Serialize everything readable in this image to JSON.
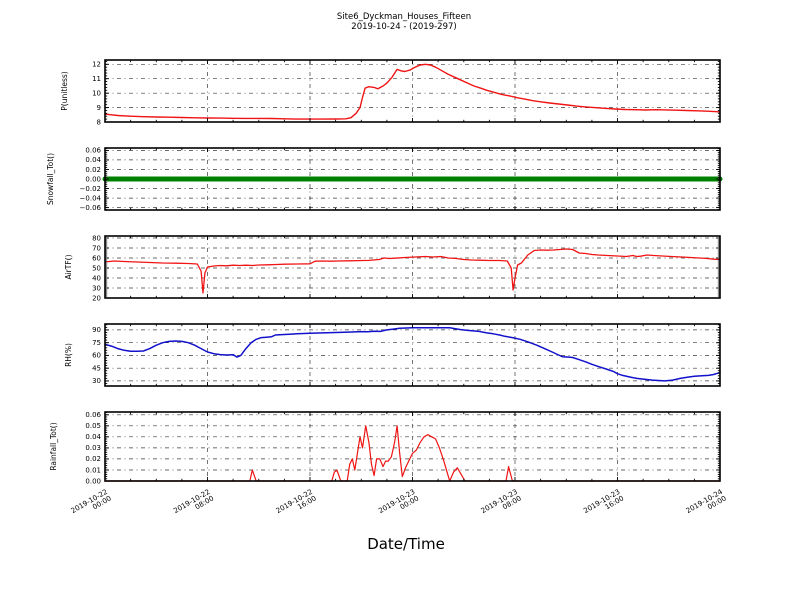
{
  "header": {
    "title_line1": "Site6_Dyckman_Houses_Fifteen",
    "title_line2": "2019-10-24 - (2019-297)"
  },
  "xlabel": "Date/Time",
  "colors": {
    "red": "#f01414",
    "green": "#008000",
    "blue": "#1111cc",
    "grid": "#3a3a3a",
    "frame": "#000000",
    "plot_bg": "#ffffff"
  },
  "x_axis": {
    "range_hours": [
      0,
      48
    ],
    "tick_hours": [
      0,
      8,
      16,
      24,
      32,
      40,
      48
    ],
    "tick_labels": [
      [
        "2019-10-22",
        "00:00"
      ],
      [
        "2019-10-22",
        "08:00"
      ],
      [
        "2019-10-22",
        "16:00"
      ],
      [
        "2019-10-23",
        "00:00"
      ],
      [
        "2019-10-23",
        "08:00"
      ],
      [
        "2019-10-23",
        "16:00"
      ],
      [
        "2019-10-24",
        "00:00"
      ]
    ],
    "minor_step_hours": 2,
    "grid": "dash-dot"
  },
  "chart_data": [
    {
      "type": "line",
      "id": "p-unitless",
      "ylabel": "P(unitless)",
      "ylim": [
        8,
        12.3
      ],
      "yticks": [
        8,
        9,
        10,
        11,
        12
      ],
      "ytick_labels": [
        "8",
        "9",
        "10",
        "11",
        "12"
      ],
      "color_key": "red",
      "line_width": 1.4,
      "points": [
        [
          0,
          8.55
        ],
        [
          0.5,
          8.5
        ],
        [
          1,
          8.45
        ],
        [
          2,
          8.4
        ],
        [
          3,
          8.37
        ],
        [
          4,
          8.35
        ],
        [
          5,
          8.33
        ],
        [
          6,
          8.31
        ],
        [
          7,
          8.29
        ],
        [
          8,
          8.28
        ],
        [
          9,
          8.27
        ],
        [
          10,
          8.26
        ],
        [
          11,
          8.25
        ],
        [
          12,
          8.25
        ],
        [
          13,
          8.24
        ],
        [
          14,
          8.22
        ],
        [
          15,
          8.2
        ],
        [
          16,
          8.2
        ],
        [
          17,
          8.2
        ],
        [
          18,
          8.21
        ],
        [
          18.8,
          8.22
        ],
        [
          19.2,
          8.3
        ],
        [
          19.6,
          8.6
        ],
        [
          19.9,
          9
        ],
        [
          20.1,
          9.7
        ],
        [
          20.3,
          10.35
        ],
        [
          20.6,
          10.45
        ],
        [
          21,
          10.4
        ],
        [
          21.3,
          10.3
        ],
        [
          21.7,
          10.5
        ],
        [
          22,
          10.7
        ],
        [
          22.4,
          11.1
        ],
        [
          22.8,
          11.65
        ],
        [
          23.1,
          11.55
        ],
        [
          23.4,
          11.5
        ],
        [
          23.8,
          11.6
        ],
        [
          24.2,
          11.8
        ],
        [
          24.6,
          11.95
        ],
        [
          25,
          12
        ],
        [
          25.4,
          11.95
        ],
        [
          25.8,
          11.8
        ],
        [
          26.3,
          11.55
        ],
        [
          26.8,
          11.3
        ],
        [
          27.3,
          11.1
        ],
        [
          27.8,
          10.9
        ],
        [
          28.3,
          10.7
        ],
        [
          28.8,
          10.5
        ],
        [
          29.3,
          10.35
        ],
        [
          29.8,
          10.2
        ],
        [
          30.4,
          10.05
        ],
        [
          31,
          9.9
        ],
        [
          31.6,
          9.8
        ],
        [
          32.2,
          9.68
        ],
        [
          32.8,
          9.58
        ],
        [
          33.4,
          9.48
        ],
        [
          34,
          9.4
        ],
        [
          34.7,
          9.32
        ],
        [
          35.4,
          9.25
        ],
        [
          36.1,
          9.18
        ],
        [
          36.8,
          9.1
        ],
        [
          37.5,
          9.05
        ],
        [
          38.2,
          9
        ],
        [
          39,
          8.95
        ],
        [
          39.8,
          8.9
        ],
        [
          40.6,
          8.87
        ],
        [
          41.4,
          8.85
        ],
        [
          42.2,
          8.83
        ],
        [
          43,
          8.85
        ],
        [
          43.8,
          8.84
        ],
        [
          44.6,
          8.82
        ],
        [
          45.4,
          8.8
        ],
        [
          46.2,
          8.78
        ],
        [
          47,
          8.75
        ],
        [
          47.6,
          8.72
        ],
        [
          48,
          8.7
        ]
      ]
    },
    {
      "type": "line",
      "id": "snowfall-tot",
      "ylabel": "Snowfall_Tot()",
      "ylim": [
        -0.065,
        0.065
      ],
      "yticks": [
        -0.06,
        -0.04,
        -0.02,
        0,
        0.02,
        0.04,
        0.06
      ],
      "ytick_labels": [
        "−0.06",
        "−0.04",
        "−0.02",
        "0.00",
        "0.02",
        "0.04",
        "0.06"
      ],
      "color_key": "green",
      "line_width": 5,
      "points": [
        [
          0,
          0
        ],
        [
          48,
          0
        ]
      ]
    },
    {
      "type": "line",
      "id": "airtf",
      "ylabel": "AirTF()",
      "ylim": [
        20,
        82
      ],
      "yticks": [
        20,
        30,
        40,
        50,
        60,
        70,
        80
      ],
      "ytick_labels": [
        "20",
        "30",
        "40",
        "50",
        "60",
        "70",
        "80"
      ],
      "color_key": "red",
      "line_width": 1.3,
      "points": [
        [
          0,
          56
        ],
        [
          0.7,
          57
        ],
        [
          1.5,
          56.5
        ],
        [
          2.5,
          56
        ],
        [
          3.5,
          55.5
        ],
        [
          4.5,
          55
        ],
        [
          5.5,
          54.8
        ],
        [
          6.5,
          54.5
        ],
        [
          7.2,
          54
        ],
        [
          7.5,
          47
        ],
        [
          7.65,
          25
        ],
        [
          7.8,
          45
        ],
        [
          8,
          51
        ],
        [
          8.5,
          52
        ],
        [
          9,
          52.5
        ],
        [
          9.5,
          52.2
        ],
        [
          10,
          52.8
        ],
        [
          10.5,
          52.5
        ],
        [
          11,
          52.8
        ],
        [
          11.5,
          52.5
        ],
        [
          12,
          53
        ],
        [
          12.7,
          53.2
        ],
        [
          13.4,
          53.5
        ],
        [
          14,
          53.8
        ],
        [
          15,
          54
        ],
        [
          16,
          54.2
        ],
        [
          16.4,
          56.8
        ],
        [
          17,
          57
        ],
        [
          17.6,
          56.8
        ],
        [
          18.2,
          57
        ],
        [
          19,
          57.2
        ],
        [
          19.8,
          57.4
        ],
        [
          20.6,
          57.6
        ],
        [
          21.4,
          58.5
        ],
        [
          21.8,
          60
        ],
        [
          22.2,
          59.5
        ],
        [
          22.6,
          59.8
        ],
        [
          23.4,
          60.5
        ],
        [
          24.2,
          61
        ],
        [
          25,
          61.5
        ],
        [
          25.6,
          61
        ],
        [
          26.2,
          61.5
        ],
        [
          26.8,
          60
        ],
        [
          27.4,
          59.5
        ],
        [
          28,
          58.5
        ],
        [
          28.6,
          58
        ],
        [
          29.2,
          57.8
        ],
        [
          30,
          57.5
        ],
        [
          30.8,
          57.5
        ],
        [
          31.4,
          57
        ],
        [
          31.7,
          50
        ],
        [
          31.85,
          28
        ],
        [
          32,
          40
        ],
        [
          32.2,
          53
        ],
        [
          32.5,
          55
        ],
        [
          33,
          63
        ],
        [
          33.5,
          67.5
        ],
        [
          34,
          68
        ],
        [
          34.5,
          67.8
        ],
        [
          35,
          68
        ],
        [
          35.5,
          68.5
        ],
        [
          36,
          69
        ],
        [
          36.5,
          68.5
        ],
        [
          37,
          65
        ],
        [
          37.5,
          64.5
        ],
        [
          38,
          63.5
        ],
        [
          38.5,
          63
        ],
        [
          39.2,
          62.5
        ],
        [
          40,
          62
        ],
        [
          40.7,
          61.5
        ],
        [
          41.2,
          62.5
        ],
        [
          41.5,
          61.5
        ],
        [
          41.8,
          61.8
        ],
        [
          42.3,
          63
        ],
        [
          42.8,
          62.5
        ],
        [
          43.5,
          62
        ],
        [
          44.2,
          61.5
        ],
        [
          45,
          61
        ],
        [
          45.7,
          60.5
        ],
        [
          46.4,
          60
        ],
        [
          47,
          59.5
        ],
        [
          47.5,
          58.8
        ],
        [
          48,
          58.5
        ]
      ]
    },
    {
      "type": "line",
      "id": "rh",
      "ylabel": "RH(%)",
      "ylim": [
        24,
        97
      ],
      "yticks": [
        30,
        45,
        60,
        75,
        90
      ],
      "ytick_labels": [
        "30",
        "45",
        "60",
        "75",
        "90"
      ],
      "color_key": "blue",
      "line_width": 1.5,
      "points": [
        [
          0,
          73
        ],
        [
          0.5,
          71
        ],
        [
          1,
          68
        ],
        [
          1.5,
          66
        ],
        [
          2,
          65
        ],
        [
          2.5,
          64.8
        ],
        [
          3,
          65.2
        ],
        [
          3.5,
          68
        ],
        [
          4,
          72
        ],
        [
          4.5,
          75
        ],
        [
          5,
          76.5
        ],
        [
          5.5,
          77
        ],
        [
          6,
          76.5
        ],
        [
          6.5,
          75
        ],
        [
          7,
          72
        ],
        [
          7.5,
          68
        ],
        [
          8,
          64
        ],
        [
          8.5,
          62
        ],
        [
          9,
          61
        ],
        [
          9.5,
          60.5
        ],
        [
          10,
          60.8
        ],
        [
          10.3,
          58
        ],
        [
          10.6,
          60
        ],
        [
          11,
          68
        ],
        [
          11.4,
          75
        ],
        [
          11.8,
          79
        ],
        [
          12.2,
          81
        ],
        [
          12.6,
          81.5
        ],
        [
          13,
          82
        ],
        [
          13.3,
          84
        ],
        [
          13.8,
          84.5
        ],
        [
          14.4,
          85
        ],
        [
          15,
          85.5
        ],
        [
          16,
          86
        ],
        [
          17,
          86.5
        ],
        [
          18,
          87
        ],
        [
          19,
          87.5
        ],
        [
          20,
          88
        ],
        [
          20.5,
          87.8
        ],
        [
          21,
          88.5
        ],
        [
          21.5,
          88.3
        ],
        [
          22,
          90
        ],
        [
          22.5,
          91
        ],
        [
          23,
          92
        ],
        [
          24,
          92.5
        ],
        [
          25,
          92.5
        ],
        [
          26,
          92.7
        ],
        [
          26.9,
          92.5
        ],
        [
          27.7,
          90.5
        ],
        [
          28.3,
          89.5
        ],
        [
          29.1,
          88.5
        ],
        [
          29.8,
          86.5
        ],
        [
          30.3,
          85.5
        ],
        [
          30.8,
          84
        ],
        [
          31.2,
          82.5
        ],
        [
          31.8,
          81
        ],
        [
          32.4,
          79
        ],
        [
          33,
          76
        ],
        [
          33.7,
          72
        ],
        [
          34.3,
          68
        ],
        [
          34.9,
          64
        ],
        [
          35.4,
          60.5
        ],
        [
          35.7,
          58.5
        ],
        [
          36.2,
          58
        ],
        [
          36.5,
          57.5
        ],
        [
          36.9,
          55.5
        ],
        [
          37.5,
          52.5
        ],
        [
          38,
          49.5
        ],
        [
          38.6,
          46.5
        ],
        [
          39.2,
          43.5
        ],
        [
          39.7,
          41
        ],
        [
          40,
          38.5
        ],
        [
          40.4,
          36.5
        ],
        [
          41,
          34.5
        ],
        [
          41.5,
          33
        ],
        [
          42.1,
          32
        ],
        [
          42.7,
          31
        ],
        [
          43.2,
          30.5
        ],
        [
          43.7,
          30
        ],
        [
          44.3,
          31
        ],
        [
          44.9,
          33
        ],
        [
          45.5,
          34.5
        ],
        [
          46,
          35.5
        ],
        [
          46.6,
          36
        ],
        [
          47.1,
          36.5
        ],
        [
          47.5,
          37.5
        ],
        [
          47.8,
          39
        ],
        [
          48,
          40
        ]
      ]
    },
    {
      "type": "line",
      "id": "rainfall-tot",
      "ylabel": "Rainfall_Tot()",
      "ylim": [
        0,
        0.0625
      ],
      "yticks": [
        0,
        0.01,
        0.02,
        0.03,
        0.04,
        0.05,
        0.06
      ],
      "ytick_labels": [
        "0.00",
        "0.01",
        "0.02",
        "0.03",
        "0.04",
        "0.05",
        "0.06"
      ],
      "color_key": "red",
      "line_width": 1.2,
      "points": [
        [
          0,
          0
        ],
        [
          11.3,
          0
        ],
        [
          11.5,
          0.01
        ],
        [
          11.8,
          0
        ],
        [
          17.7,
          0
        ],
        [
          17.9,
          0.008
        ],
        [
          18.1,
          0.01
        ],
        [
          18.4,
          0
        ],
        [
          18.9,
          0
        ],
        [
          19.1,
          0.015
        ],
        [
          19.3,
          0.02
        ],
        [
          19.5,
          0.01
        ],
        [
          19.7,
          0.025
        ],
        [
          19.9,
          0.04
        ],
        [
          20.1,
          0.03
        ],
        [
          20.35,
          0.05
        ],
        [
          20.6,
          0.035
        ],
        [
          20.8,
          0.015
        ],
        [
          21,
          0.005
        ],
        [
          21.2,
          0.02
        ],
        [
          21.45,
          0.02
        ],
        [
          21.7,
          0.013
        ],
        [
          21.9,
          0.018
        ],
        [
          22.1,
          0.018
        ],
        [
          22.35,
          0.022
        ],
        [
          22.6,
          0.035
        ],
        [
          22.8,
          0.05
        ],
        [
          23,
          0.025
        ],
        [
          23.2,
          0.004
        ],
        [
          23.45,
          0.012
        ],
        [
          23.7,
          0.018
        ],
        [
          24,
          0.025
        ],
        [
          24.3,
          0.028
        ],
        [
          24.6,
          0.035
        ],
        [
          24.9,
          0.04
        ],
        [
          25.2,
          0.042
        ],
        [
          25.5,
          0.04
        ],
        [
          25.8,
          0.038
        ],
        [
          26.1,
          0.03
        ],
        [
          26.4,
          0.02
        ],
        [
          26.7,
          0.008
        ],
        [
          26.9,
          0
        ],
        [
          27.2,
          0.008
        ],
        [
          27.5,
          0.012
        ],
        [
          27.8,
          0.006
        ],
        [
          28.1,
          0
        ],
        [
          31.3,
          0
        ],
        [
          31.5,
          0.013
        ],
        [
          31.8,
          0
        ],
        [
          48,
          0
        ]
      ]
    }
  ]
}
